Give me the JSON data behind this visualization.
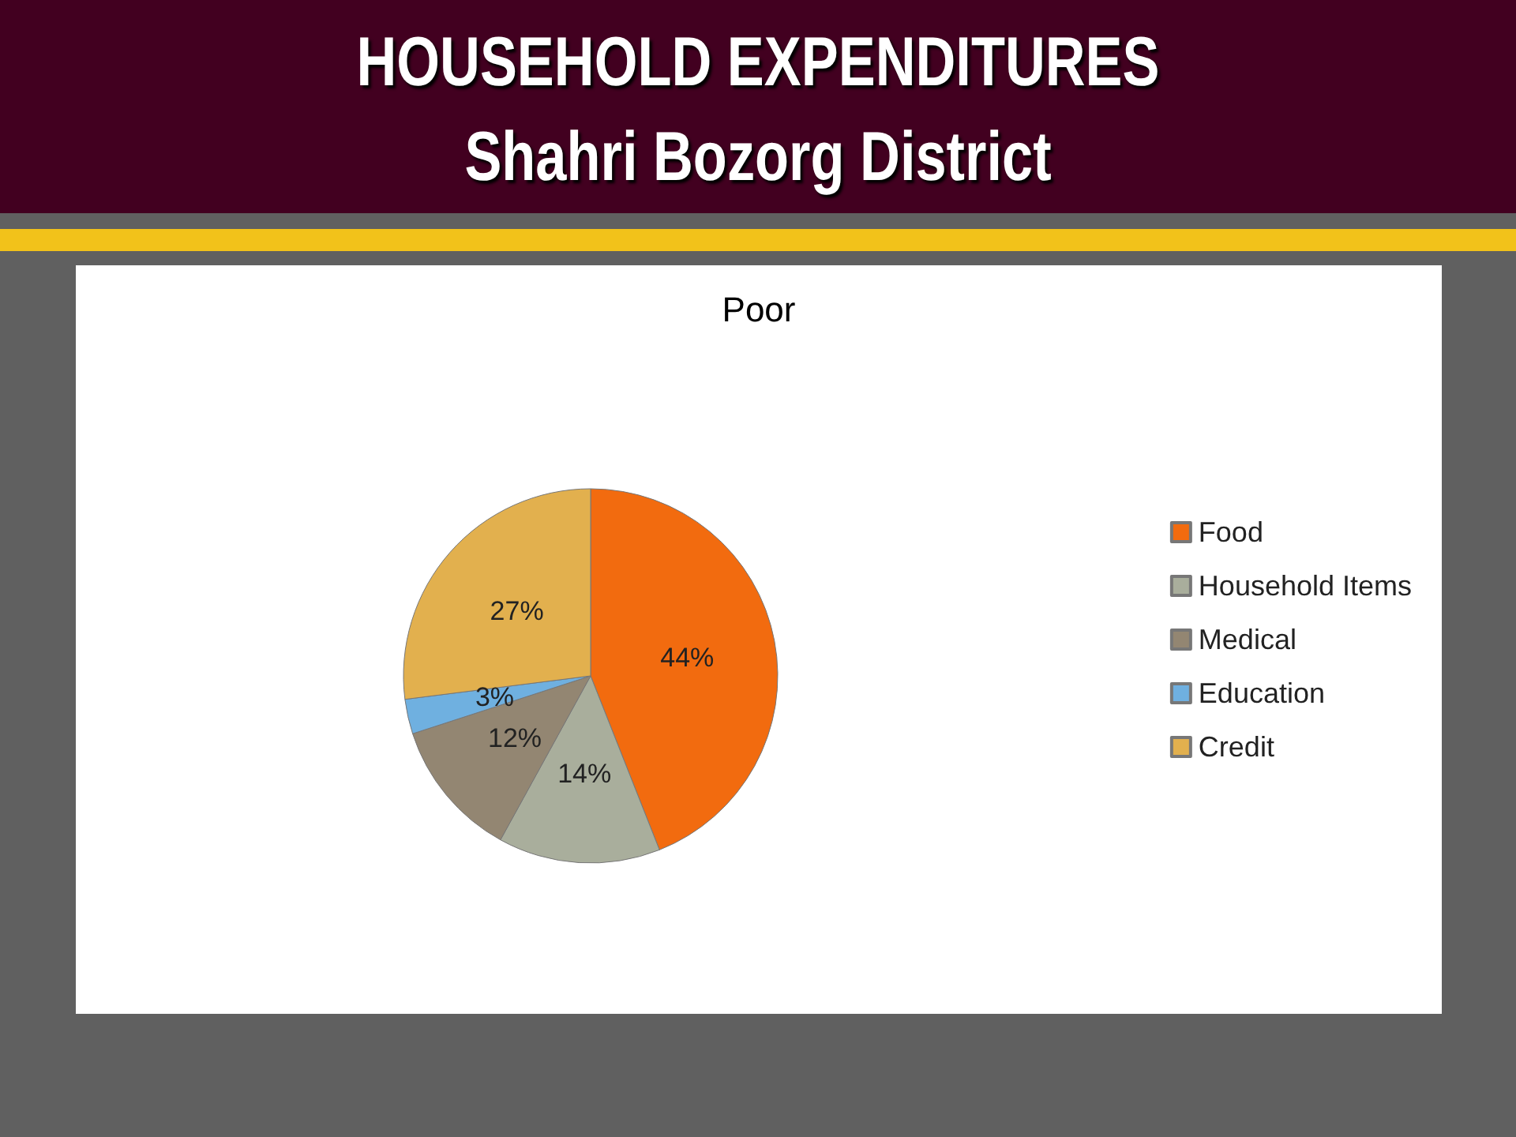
{
  "chart_data": {
    "type": "pie",
    "title": "HOUSEHOLD EXPENDITURES",
    "subtitle": "Shahri Bozorg District",
    "annotations": [
      "Poor"
    ],
    "categories": [
      "Food",
      "Household Items",
      "Medical",
      "Education",
      "Credit"
    ],
    "values": [
      44,
      14,
      12,
      3,
      27
    ],
    "value_labels": [
      "44%",
      "14%",
      "12%",
      "3%",
      "27%"
    ],
    "colors": [
      "#f26b0f",
      "#a9ae9c",
      "#938672",
      "#6fb0e0",
      "#e2b04e"
    ],
    "legend": "right"
  }
}
